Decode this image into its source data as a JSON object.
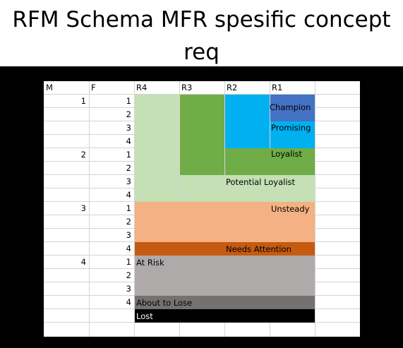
{
  "title": "RFM Schema MFR spesific concept req",
  "title_line1": "RFM Schema MFR spesific concept",
  "title_line2": "req",
  "headers": {
    "m": "M",
    "f": "F",
    "r4": "R4",
    "r3": "R3",
    "r2": "R2",
    "r1": "R1"
  },
  "m_values": [
    "1",
    "2",
    "3",
    "4"
  ],
  "f_values": [
    "1",
    "2",
    "3",
    "4",
    "1",
    "2",
    "3",
    "4",
    "1",
    "2",
    "3",
    "4",
    "1",
    "2",
    "3",
    "4"
  ],
  "segments": {
    "champion": "Champion",
    "promising": "Promising",
    "loyalist": "Loyalist",
    "potential_loyalist": "Potential Loyalist",
    "unsteady": "Unsteady",
    "needs_attention": "Needs Attention",
    "at_risk": "At Risk",
    "about_to_lose": "About to Lose",
    "lost": "Lost"
  },
  "colors": {
    "champion": "#4472c4",
    "promising": "#00b0f0",
    "loyalist": "#70ad47",
    "potential_loyalist": "#c5e0b4",
    "unsteady": "#f4b183",
    "needs_attention": "#c55a11",
    "at_risk": "#aeaaaa",
    "about_to_lose": "#767171",
    "lost": "#000000"
  }
}
